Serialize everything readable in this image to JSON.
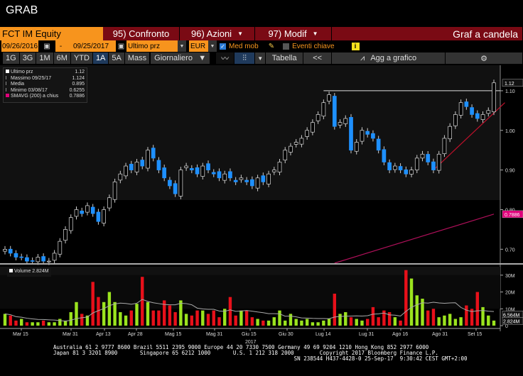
{
  "window_title": "GRAB",
  "toolbar1": {
    "ticker": "FCT IM Equity",
    "compare": "95) Confronto",
    "actions": "96) Azioni",
    "modify": "97) Modif",
    "chart_type": "Graf a candela"
  },
  "toolbar2": {
    "start_date": "09/26/2016",
    "sep": "-",
    "end_date": "09/25/2017",
    "field": "Ultimo prz",
    "currency": "EUR",
    "moving_avg_label": "Med mob",
    "moving_avg_checked": true,
    "key_events_label": "Eventi chiave",
    "key_events_checked": false
  },
  "toolbar3": {
    "periods": [
      "1G",
      "3G",
      "1M",
      "6M",
      "YTD",
      "1A",
      "5A",
      "Mass"
    ],
    "selected_period": "1A",
    "frequency": "Giornaliero",
    "table": "Tabella",
    "back": "<<",
    "add_to_chart": "Agg a grafico"
  },
  "legend": {
    "items": [
      {
        "label": "Ultimo prz",
        "value": "1.12",
        "color": "#ffffff"
      },
      {
        "label": "Massimo 09/25/17",
        "value": "1.124"
      },
      {
        "label": "Media",
        "value": "0.895"
      },
      {
        "label": "Minimo 03/08/17",
        "value": "0.6255"
      },
      {
        "label": "SMAVG (200) a chius",
        "value": "0.7886",
        "color": "#e0007a"
      }
    ]
  },
  "volume_legend": "Volume 2.824M",
  "colors": {
    "up": "#1e90ff",
    "down": "#ffffff",
    "vol_up": "#9be41e",
    "vol_down": "#e8101a",
    "sma": "#b0105a",
    "trend": "#c0102a"
  },
  "chart_data": [
    {
      "type": "candlestick",
      "ylim": [
        0.663,
        1.15
      ],
      "yticks": [
        "1.10",
        "1.00",
        "0.90",
        "0.80",
        "0.70"
      ],
      "last_price_label": "1.12",
      "sma_label": "0.7886",
      "closes": [
        0.7,
        0.69,
        0.68,
        0.68,
        0.67,
        0.67,
        0.68,
        0.67,
        0.67,
        0.69,
        0.72,
        0.75,
        0.78,
        0.8,
        0.79,
        0.81,
        0.79,
        0.77,
        0.8,
        0.83,
        0.87,
        0.89,
        0.91,
        0.9,
        0.92,
        0.91,
        0.95,
        0.93,
        0.9,
        0.88,
        0.86,
        0.84,
        0.9,
        0.91,
        0.9,
        0.89,
        0.91,
        0.9,
        0.89,
        0.88,
        0.89,
        0.88,
        0.87,
        0.88,
        0.87,
        0.86,
        0.88,
        0.87,
        0.89,
        0.9,
        0.92,
        0.95,
        0.96,
        0.97,
        0.98,
        1.0,
        1.02,
        1.04,
        1.07,
        1.09,
        1.01,
        1.02,
        1.03,
        0.95,
        0.97,
        1.0,
        0.99,
        0.98,
        0.95,
        0.92,
        0.9,
        0.91,
        0.9,
        0.89,
        0.9,
        0.93,
        0.94,
        0.92,
        0.9,
        0.94,
        0.98,
        1.01,
        1.04,
        1.07,
        1.06,
        1.04,
        1.03,
        1.04,
        1.05,
        1.12
      ],
      "smavg": {
        "from_index": 60,
        "values": [
          0.665,
          0.7886
        ]
      },
      "resistance": 1.1,
      "trendline": [
        [
          78,
          0.9
        ],
        [
          91,
          1.07
        ]
      ]
    },
    {
      "type": "bar",
      "title": "Volume",
      "ylim": [
        0,
        35
      ],
      "yticks": [
        "30M",
        "20M",
        "10M",
        "0"
      ],
      "labels": [
        "6.564M",
        "2.824M"
      ],
      "volumes": [
        7,
        6,
        3,
        4,
        2,
        2,
        2,
        3,
        2,
        2,
        4,
        3,
        8,
        14,
        7,
        6,
        26,
        17,
        14,
        20,
        14,
        8,
        6,
        9,
        13,
        29,
        14,
        9,
        9,
        15,
        12,
        8,
        15,
        7,
        6,
        9,
        9,
        7,
        9,
        5,
        10,
        17,
        6,
        9,
        9,
        5,
        4,
        3,
        3,
        5,
        9,
        3,
        7,
        4,
        3,
        4,
        2,
        2,
        3,
        4,
        19,
        7,
        8,
        5,
        4,
        3,
        4,
        11,
        5,
        9,
        8,
        5,
        3,
        33,
        28,
        18,
        16,
        9,
        10,
        5,
        6,
        7,
        4,
        5,
        12,
        10,
        20,
        11,
        6,
        3
      ],
      "xticks": [
        "Mar 15",
        "Mar 31",
        "Apr 13",
        "Apr 28",
        "Mag 15",
        "Mag 31",
        "Giu 15",
        "Giu 30",
        "Lug 14",
        "Lug 31",
        "Ago 16",
        "Ago 31",
        "Set 15"
      ],
      "year_label": "2017"
    }
  ],
  "footer": "Australia 61 2 9777 8600 Brazil 5511 2395 9000 Europe 44 20 7330 7500 Germany 49 69 9204 1210 Hong Kong 852 2977 6000\nJapan 81 3 3201 8900       Singapore 65 6212 1000       U.S. 1 212 318 2000        Copyright 2017 Bloomberg Finance L.P.\n                                                                           SN 238544 H437-4428-0 25-Sep-17  9:30:42 CEST GMT+2:00"
}
